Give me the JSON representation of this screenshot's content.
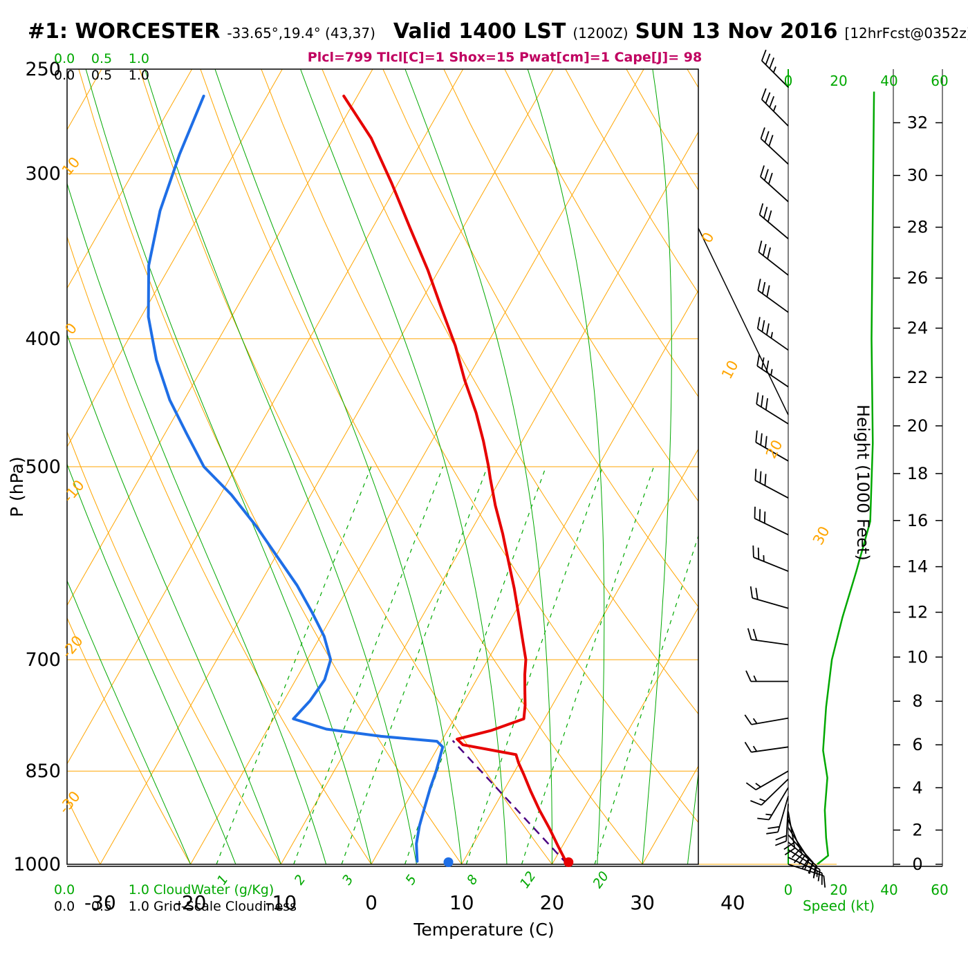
{
  "title": {
    "station": "#1: WORCESTER",
    "coords": "-33.65°,19.4° (43,37)",
    "valid": "Valid 1400 LST",
    "valid_z": "(1200Z)",
    "date": "SUN 13 Nov 2016",
    "forecast": "[12hrFcst@0352z]"
  },
  "params_line": "Plcl=799 Tlcl[C]=1 Shox=15 Pwat[cm]=1 Cape[J]= 98",
  "axes": {
    "pressure_label": "P (hPa)",
    "pressure_ticks": [
      250,
      300,
      400,
      500,
      700,
      850,
      1000
    ],
    "temperature_label": "Temperature (C)",
    "temperature_ticks": [
      -30,
      -20,
      -10,
      0,
      10,
      20,
      30,
      40
    ],
    "height_label": "Height (1000 Feet)",
    "height_ticks": [
      0,
      2,
      4,
      6,
      8,
      10,
      12,
      14,
      16,
      18,
      20,
      22,
      24,
      26,
      28,
      30,
      32
    ],
    "speed_label": "Speed (kt)",
    "speed_ticks": [
      0,
      20,
      40,
      60
    ],
    "cloudwater_label": "CloudWater (g/Kg)",
    "cloudwater_ticks": [
      "0.0",
      "0.5",
      "1.0"
    ],
    "cloudiness_label": "Grid-Scale Cloudiness",
    "cloudiness_ticks": [
      "0.0",
      "0.5",
      "1.0"
    ]
  },
  "grid_labels": {
    "dry_adiabats_left": [
      "10",
      "0",
      "-10",
      "-20",
      "-30"
    ],
    "isotherms_right": [
      "0",
      "10",
      "20",
      "30"
    ],
    "mixing_ratio": [
      "1",
      "2",
      "3",
      "5",
      "8",
      "12",
      "20"
    ]
  },
  "colors": {
    "grid_orange": "#FFA500",
    "grid_green": "#00A800",
    "label_green": "#00A800",
    "temperature_trace": "#E60000",
    "dewpoint_trace": "#1E6EE6",
    "parcel_trace": "#4B0082",
    "params_text": "#C00060"
  },
  "chart_data": {
    "type": "skewt_log_p_sounding",
    "pressure_range_hpa": [
      1000,
      250
    ],
    "isotherm_range_c": [
      -100,
      40,
      10
    ],
    "dry_adiabat_range_c": [
      -60,
      150,
      10
    ],
    "moist_adiabats_c": [
      -20,
      -15,
      -10,
      -5,
      0,
      5,
      10,
      15,
      20,
      25,
      30,
      35
    ],
    "mixing_ratio_lines_g_kg": [
      1,
      2,
      3,
      5,
      8,
      12,
      20
    ],
    "surface_temperature_c": 21.7,
    "surface_dewpoint_c": 8.4,
    "parcel_path": [
      [
        1000,
        21.7
      ],
      [
        806,
        1.2
      ]
    ],
    "temperature_profile": [
      [
        1000,
        21.7
      ],
      [
        970,
        19.6
      ],
      [
        940,
        17.5
      ],
      [
        910,
        15.2
      ],
      [
        880,
        13.0
      ],
      [
        855,
        11.2
      ],
      [
        838,
        9.9
      ],
      [
        826,
        9.1
      ],
      [
        812,
        2.6
      ],
      [
        804,
        1.6
      ],
      [
        792,
        4.8
      ],
      [
        776,
        7.7
      ],
      [
        758,
        7.0
      ],
      [
        738,
        6.0
      ],
      [
        718,
        5.0
      ],
      [
        700,
        4.2
      ],
      [
        672,
        2.3
      ],
      [
        645,
        0.4
      ],
      [
        618,
        -1.6
      ],
      [
        590,
        -3.9
      ],
      [
        562,
        -6.3
      ],
      [
        535,
        -8.9
      ],
      [
        510,
        -11.2
      ],
      [
        500,
        -12.1
      ],
      [
        478,
        -14.3
      ],
      [
        455,
        -16.9
      ],
      [
        430,
        -20.2
      ],
      [
        405,
        -23.4
      ],
      [
        380,
        -27.2
      ],
      [
        355,
        -31.2
      ],
      [
        330,
        -35.8
      ],
      [
        305,
        -40.7
      ],
      [
        282,
        -45.8
      ],
      [
        262,
        -51.5
      ]
    ],
    "dewpoint_profile": [
      [
        995,
        4.9
      ],
      [
        965,
        3.7
      ],
      [
        935,
        2.9
      ],
      [
        905,
        2.3
      ],
      [
        875,
        1.7
      ],
      [
        850,
        1.3
      ],
      [
        832,
        0.9
      ],
      [
        815,
        0.5
      ],
      [
        807,
        -0.5
      ],
      [
        800,
        -7.0
      ],
      [
        790,
        -13.5
      ],
      [
        776,
        -17.8
      ],
      [
        752,
        -17.1
      ],
      [
        725,
        -16.8
      ],
      [
        700,
        -17.4
      ],
      [
        672,
        -19.6
      ],
      [
        645,
        -22.4
      ],
      [
        615,
        -25.8
      ],
      [
        585,
        -29.8
      ],
      [
        555,
        -34.0
      ],
      [
        525,
        -38.8
      ],
      [
        500,
        -43.6
      ],
      [
        472,
        -47.6
      ],
      [
        445,
        -51.6
      ],
      [
        415,
        -55.6
      ],
      [
        385,
        -59.2
      ],
      [
        352,
        -62.4
      ],
      [
        320,
        -64.6
      ],
      [
        290,
        -66.0
      ],
      [
        262,
        -67.0
      ]
    ],
    "wind_barbs": [
      [
        258,
        315,
        35
      ],
      [
        276,
        315,
        35
      ],
      [
        295,
        313,
        30
      ],
      [
        315,
        312,
        30
      ],
      [
        336,
        310,
        30
      ],
      [
        358,
        308,
        30
      ],
      [
        382,
        306,
        30
      ],
      [
        408,
        305,
        35
      ],
      [
        435,
        304,
        35
      ],
      [
        464,
        302,
        30
      ],
      [
        495,
        300,
        30
      ],
      [
        528,
        298,
        30
      ],
      [
        563,
        296,
        28
      ],
      [
        600,
        292,
        25
      ],
      [
        640,
        286,
        22
      ],
      [
        682,
        278,
        18
      ],
      [
        727,
        270,
        15
      ],
      [
        775,
        260,
        15
      ],
      [
        815,
        262,
        15
      ],
      [
        850,
        240,
        15
      ],
      [
        862,
        226,
        15
      ],
      [
        875,
        211,
        15
      ],
      [
        888,
        196,
        18
      ],
      [
        900,
        183,
        18
      ],
      [
        912,
        170,
        20
      ],
      [
        925,
        158,
        20
      ],
      [
        938,
        147,
        20
      ],
      [
        950,
        138,
        20
      ],
      [
        962,
        130,
        18
      ],
      [
        975,
        122,
        18
      ],
      [
        988,
        115,
        15
      ],
      [
        1000,
        108,
        12
      ]
    ],
    "wind_speed_profile": [
      [
        260,
        34
      ],
      [
        320,
        33.5
      ],
      [
        400,
        33
      ],
      [
        480,
        33.5
      ],
      [
        550,
        32.5
      ],
      [
        600,
        27
      ],
      [
        650,
        21.5
      ],
      [
        700,
        17.3
      ],
      [
        760,
        15
      ],
      [
        820,
        13.8
      ],
      [
        860,
        15.5
      ],
      [
        910,
        14.5
      ],
      [
        955,
        15
      ],
      [
        985,
        15.8
      ],
      [
        1000,
        11.5
      ]
    ]
  }
}
